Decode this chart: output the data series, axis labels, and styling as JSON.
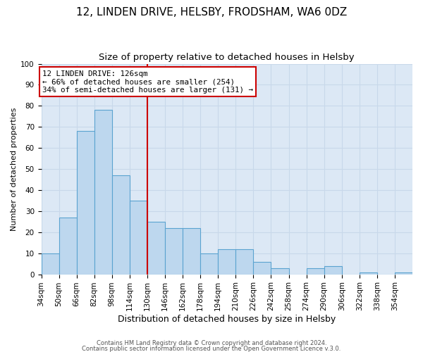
{
  "title": "12, LINDEN DRIVE, HELSBY, FRODSHAM, WA6 0DZ",
  "subtitle": "Size of property relative to detached houses in Helsby",
  "xlabel": "Distribution of detached houses by size in Helsby",
  "ylabel": "Number of detached properties",
  "bin_labels": [
    "34sqm",
    "50sqm",
    "66sqm",
    "82sqm",
    "98sqm",
    "114sqm",
    "130sqm",
    "146sqm",
    "162sqm",
    "178sqm",
    "194sqm",
    "210sqm",
    "226sqm",
    "242sqm",
    "258sqm",
    "274sqm",
    "290sqm",
    "306sqm",
    "322sqm",
    "338sqm",
    "354sqm"
  ],
  "bin_edges": [
    34,
    50,
    66,
    82,
    98,
    114,
    130,
    146,
    162,
    178,
    194,
    210,
    226,
    242,
    258,
    274,
    290,
    306,
    322,
    338,
    354,
    370
  ],
  "values": [
    10,
    27,
    68,
    78,
    47,
    35,
    25,
    22,
    22,
    10,
    12,
    12,
    6,
    3,
    0,
    3,
    4,
    0,
    1,
    0,
    1
  ],
  "bar_color": "#bdd7ee",
  "bar_edge_color": "#5ba3d0",
  "property_line_x": 130,
  "property_line_color": "#cc0000",
  "annotation_title": "12 LINDEN DRIVE: 126sqm",
  "annotation_line1": "← 66% of detached houses are smaller (254)",
  "annotation_line2": "34% of semi-detached houses are larger (131) →",
  "annotation_box_color": "#cc0000",
  "ylim": [
    0,
    100
  ],
  "yticks": [
    0,
    10,
    20,
    30,
    40,
    50,
    60,
    70,
    80,
    90,
    100
  ],
  "grid_color": "#c8d8ea",
  "footer1": "Contains HM Land Registry data © Crown copyright and database right 2024.",
  "footer2": "Contains public sector information licensed under the Open Government Licence v.3.0.",
  "background_color": "#dce8f5",
  "title_fontsize": 11,
  "subtitle_fontsize": 9.5,
  "tick_fontsize": 7.5,
  "ylabel_fontsize": 8,
  "xlabel_fontsize": 9
}
